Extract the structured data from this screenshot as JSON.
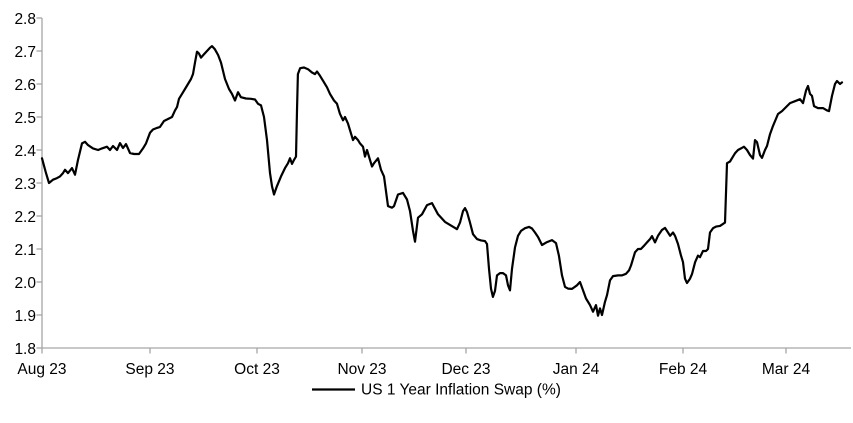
{
  "chart_data": {
    "type": "line",
    "title": "",
    "legend": {
      "label": "US 1 Year Inflation Swap (%)",
      "position": "bottom-center"
    },
    "grid": false,
    "colors": {
      "line": "#000000",
      "axis": "#a6a6a6",
      "text": "#000000",
      "background": "#ffffff"
    },
    "y_axis": {
      "min": 1.8,
      "max": 2.8,
      "step": 0.1,
      "tick_labels": [
        "1.8",
        "1.9",
        "2.0",
        "2.1",
        "2.2",
        "2.3",
        "2.4",
        "2.5",
        "2.6",
        "2.7",
        "2.8"
      ]
    },
    "x_axis": {
      "unit": "months since Aug 2023",
      "tick_labels": [
        "Aug 23",
        "Sep 23",
        "Oct 23",
        "Nov 23",
        "Dec 23",
        "Jan 24",
        "Feb 24",
        "Mar 24"
      ]
    },
    "series": [
      {
        "name": "US 1 Year Inflation Swap (%)",
        "color": "#000000",
        "points": [
          [
            0.0,
            2.375
          ],
          [
            0.037,
            2.33
          ],
          [
            0.065,
            2.3
          ],
          [
            0.102,
            2.31
          ],
          [
            0.139,
            2.315
          ],
          [
            0.167,
            2.32
          ],
          [
            0.194,
            2.33
          ],
          [
            0.213,
            2.34
          ],
          [
            0.241,
            2.33
          ],
          [
            0.278,
            2.345
          ],
          [
            0.306,
            2.325
          ],
          [
            0.333,
            2.37
          ],
          [
            0.37,
            2.42
          ],
          [
            0.398,
            2.425
          ],
          [
            0.426,
            2.415
          ],
          [
            0.472,
            2.405
          ],
          [
            0.519,
            2.4
          ],
          [
            0.556,
            2.405
          ],
          [
            0.602,
            2.41
          ],
          [
            0.63,
            2.4
          ],
          [
            0.657,
            2.412
          ],
          [
            0.694,
            2.4
          ],
          [
            0.722,
            2.421
          ],
          [
            0.75,
            2.406
          ],
          [
            0.778,
            2.418
          ],
          [
            0.815,
            2.391
          ],
          [
            0.852,
            2.388
          ],
          [
            0.898,
            2.388
          ],
          [
            0.935,
            2.405
          ],
          [
            0.963,
            2.42
          ],
          [
            1.0,
            2.452
          ],
          [
            1.028,
            2.462
          ],
          [
            1.065,
            2.467
          ],
          [
            1.093,
            2.47
          ],
          [
            1.131,
            2.488
          ],
          [
            1.168,
            2.494
          ],
          [
            1.206,
            2.5
          ],
          [
            1.234,
            2.52
          ],
          [
            1.252,
            2.53
          ],
          [
            1.271,
            2.555
          ],
          [
            1.299,
            2.57
          ],
          [
            1.327,
            2.585
          ],
          [
            1.355,
            2.6
          ],
          [
            1.383,
            2.615
          ],
          [
            1.402,
            2.63
          ],
          [
            1.421,
            2.665
          ],
          [
            1.439,
            2.698
          ],
          [
            1.458,
            2.692
          ],
          [
            1.477,
            2.68
          ],
          [
            1.505,
            2.69
          ],
          [
            1.533,
            2.7
          ],
          [
            1.561,
            2.71
          ],
          [
            1.579,
            2.715
          ],
          [
            1.607,
            2.705
          ],
          [
            1.636,
            2.688
          ],
          [
            1.664,
            2.665
          ],
          [
            1.701,
            2.615
          ],
          [
            1.738,
            2.585
          ],
          [
            1.766,
            2.57
          ],
          [
            1.794,
            2.55
          ],
          [
            1.822,
            2.575
          ],
          [
            1.85,
            2.56
          ],
          [
            1.897,
            2.556
          ],
          [
            1.944,
            2.555
          ],
          [
            1.981,
            2.553
          ],
          [
            2.01,
            2.54
          ],
          [
            2.038,
            2.535
          ],
          [
            2.067,
            2.5
          ],
          [
            2.095,
            2.43
          ],
          [
            2.124,
            2.33
          ],
          [
            2.143,
            2.29
          ],
          [
            2.162,
            2.265
          ],
          [
            2.19,
            2.29
          ],
          [
            2.229,
            2.32
          ],
          [
            2.267,
            2.345
          ],
          [
            2.295,
            2.36
          ],
          [
            2.314,
            2.375
          ],
          [
            2.333,
            2.358
          ],
          [
            2.352,
            2.37
          ],
          [
            2.371,
            2.38
          ],
          [
            2.381,
            2.52
          ],
          [
            2.39,
            2.63
          ],
          [
            2.41,
            2.648
          ],
          [
            2.448,
            2.65
          ],
          [
            2.486,
            2.645
          ],
          [
            2.524,
            2.635
          ],
          [
            2.552,
            2.63
          ],
          [
            2.571,
            2.638
          ],
          [
            2.6,
            2.625
          ],
          [
            2.629,
            2.61
          ],
          [
            2.667,
            2.59
          ],
          [
            2.695,
            2.57
          ],
          [
            2.733,
            2.55
          ],
          [
            2.762,
            2.54
          ],
          [
            2.79,
            2.51
          ],
          [
            2.819,
            2.49
          ],
          [
            2.838,
            2.5
          ],
          [
            2.867,
            2.48
          ],
          [
            2.886,
            2.46
          ],
          [
            2.914,
            2.43
          ],
          [
            2.933,
            2.44
          ],
          [
            2.962,
            2.43
          ],
          [
            2.981,
            2.42
          ],
          [
            3.01,
            2.41
          ],
          [
            3.029,
            2.38
          ],
          [
            3.048,
            2.4
          ],
          [
            3.077,
            2.37
          ],
          [
            3.096,
            2.35
          ],
          [
            3.115,
            2.36
          ],
          [
            3.154,
            2.375
          ],
          [
            3.183,
            2.34
          ],
          [
            3.212,
            2.32
          ],
          [
            3.25,
            2.23
          ],
          [
            3.288,
            2.225
          ],
          [
            3.308,
            2.23
          ],
          [
            3.346,
            2.265
          ],
          [
            3.394,
            2.27
          ],
          [
            3.433,
            2.25
          ],
          [
            3.462,
            2.215
          ],
          [
            3.49,
            2.155
          ],
          [
            3.51,
            2.122
          ],
          [
            3.538,
            2.195
          ],
          [
            3.577,
            2.205
          ],
          [
            3.625,
            2.233
          ],
          [
            3.673,
            2.239
          ],
          [
            3.731,
            2.205
          ],
          [
            3.798,
            2.182
          ],
          [
            3.846,
            2.173
          ],
          [
            3.894,
            2.164
          ],
          [
            3.913,
            2.16
          ],
          [
            3.942,
            2.18
          ],
          [
            3.971,
            2.215
          ],
          [
            3.99,
            2.224
          ],
          [
            4.009,
            2.212
          ],
          [
            4.036,
            2.18
          ],
          [
            4.064,
            2.145
          ],
          [
            4.1,
            2.13
          ],
          [
            4.136,
            2.126
          ],
          [
            4.173,
            2.124
          ],
          [
            4.191,
            2.115
          ],
          [
            4.209,
            2.04
          ],
          [
            4.227,
            1.98
          ],
          [
            4.245,
            1.955
          ],
          [
            4.264,
            1.973
          ],
          [
            4.282,
            2.02
          ],
          [
            4.309,
            2.027
          ],
          [
            4.336,
            2.027
          ],
          [
            4.364,
            2.02
          ],
          [
            4.382,
            1.99
          ],
          [
            4.4,
            1.975
          ],
          [
            4.418,
            2.04
          ],
          [
            4.445,
            2.105
          ],
          [
            4.473,
            2.14
          ],
          [
            4.5,
            2.155
          ],
          [
            4.536,
            2.163
          ],
          [
            4.573,
            2.167
          ],
          [
            4.6,
            2.162
          ],
          [
            4.627,
            2.15
          ],
          [
            4.655,
            2.136
          ],
          [
            4.691,
            2.112
          ],
          [
            4.736,
            2.121
          ],
          [
            4.782,
            2.127
          ],
          [
            4.818,
            2.118
          ],
          [
            4.845,
            2.08
          ],
          [
            4.873,
            2.02
          ],
          [
            4.9,
            1.985
          ],
          [
            4.927,
            1.98
          ],
          [
            4.964,
            1.979
          ],
          [
            5.009,
            1.99
          ],
          [
            5.037,
            2.0
          ],
          [
            5.065,
            1.975
          ],
          [
            5.093,
            1.95
          ],
          [
            5.131,
            1.93
          ],
          [
            5.159,
            1.91
          ],
          [
            5.187,
            1.93
          ],
          [
            5.206,
            1.898
          ],
          [
            5.224,
            1.92
          ],
          [
            5.243,
            1.9
          ],
          [
            5.271,
            1.94
          ],
          [
            5.29,
            1.96
          ],
          [
            5.318,
            2.005
          ],
          [
            5.346,
            2.018
          ],
          [
            5.393,
            2.02
          ],
          [
            5.43,
            2.02
          ],
          [
            5.467,
            2.025
          ],
          [
            5.495,
            2.035
          ],
          [
            5.514,
            2.05
          ],
          [
            5.533,
            2.07
          ],
          [
            5.551,
            2.09
          ],
          [
            5.579,
            2.1
          ],
          [
            5.607,
            2.1
          ],
          [
            5.636,
            2.11
          ],
          [
            5.664,
            2.12
          ],
          [
            5.692,
            2.13
          ],
          [
            5.71,
            2.139
          ],
          [
            5.738,
            2.12
          ],
          [
            5.766,
            2.14
          ],
          [
            5.804,
            2.158
          ],
          [
            5.832,
            2.164
          ],
          [
            5.86,
            2.15
          ],
          [
            5.879,
            2.14
          ],
          [
            5.907,
            2.15
          ],
          [
            5.925,
            2.14
          ],
          [
            5.953,
            2.115
          ],
          [
            5.981,
            2.08
          ],
          [
            6.0,
            2.06
          ],
          [
            6.019,
            2.01
          ],
          [
            6.039,
            1.997
          ],
          [
            6.068,
            2.01
          ],
          [
            6.087,
            2.024
          ],
          [
            6.117,
            2.06
          ],
          [
            6.146,
            2.08
          ],
          [
            6.165,
            2.075
          ],
          [
            6.194,
            2.094
          ],
          [
            6.223,
            2.094
          ],
          [
            6.243,
            2.1
          ],
          [
            6.262,
            2.15
          ],
          [
            6.291,
            2.163
          ],
          [
            6.32,
            2.168
          ],
          [
            6.359,
            2.17
          ],
          [
            6.388,
            2.176
          ],
          [
            6.408,
            2.18
          ],
          [
            6.427,
            2.36
          ],
          [
            6.456,
            2.365
          ],
          [
            6.485,
            2.38
          ],
          [
            6.505,
            2.39
          ],
          [
            6.534,
            2.4
          ],
          [
            6.563,
            2.405
          ],
          [
            6.592,
            2.41
          ],
          [
            6.621,
            2.4
          ],
          [
            6.65,
            2.385
          ],
          [
            6.68,
            2.374
          ],
          [
            6.699,
            2.43
          ],
          [
            6.718,
            2.424
          ],
          [
            6.748,
            2.385
          ],
          [
            6.767,
            2.376
          ],
          [
            6.796,
            2.4
          ],
          [
            6.816,
            2.412
          ],
          [
            6.845,
            2.448
          ],
          [
            6.874,
            2.473
          ],
          [
            6.922,
            2.509
          ],
          [
            6.961,
            2.518
          ],
          [
            6.99,
            2.527
          ],
          [
            7.039,
            2.542
          ],
          [
            7.087,
            2.548
          ],
          [
            7.136,
            2.554
          ],
          [
            7.165,
            2.542
          ],
          [
            7.194,
            2.58
          ],
          [
            7.214,
            2.594
          ],
          [
            7.233,
            2.57
          ],
          [
            7.252,
            2.564
          ],
          [
            7.272,
            2.533
          ],
          [
            7.311,
            2.527
          ],
          [
            7.359,
            2.527
          ],
          [
            7.398,
            2.52
          ],
          [
            7.417,
            2.518
          ],
          [
            7.447,
            2.564
          ],
          [
            7.476,
            2.6
          ],
          [
            7.495,
            2.609
          ],
          [
            7.524,
            2.6
          ],
          [
            7.544,
            2.605
          ]
        ]
      }
    ]
  }
}
